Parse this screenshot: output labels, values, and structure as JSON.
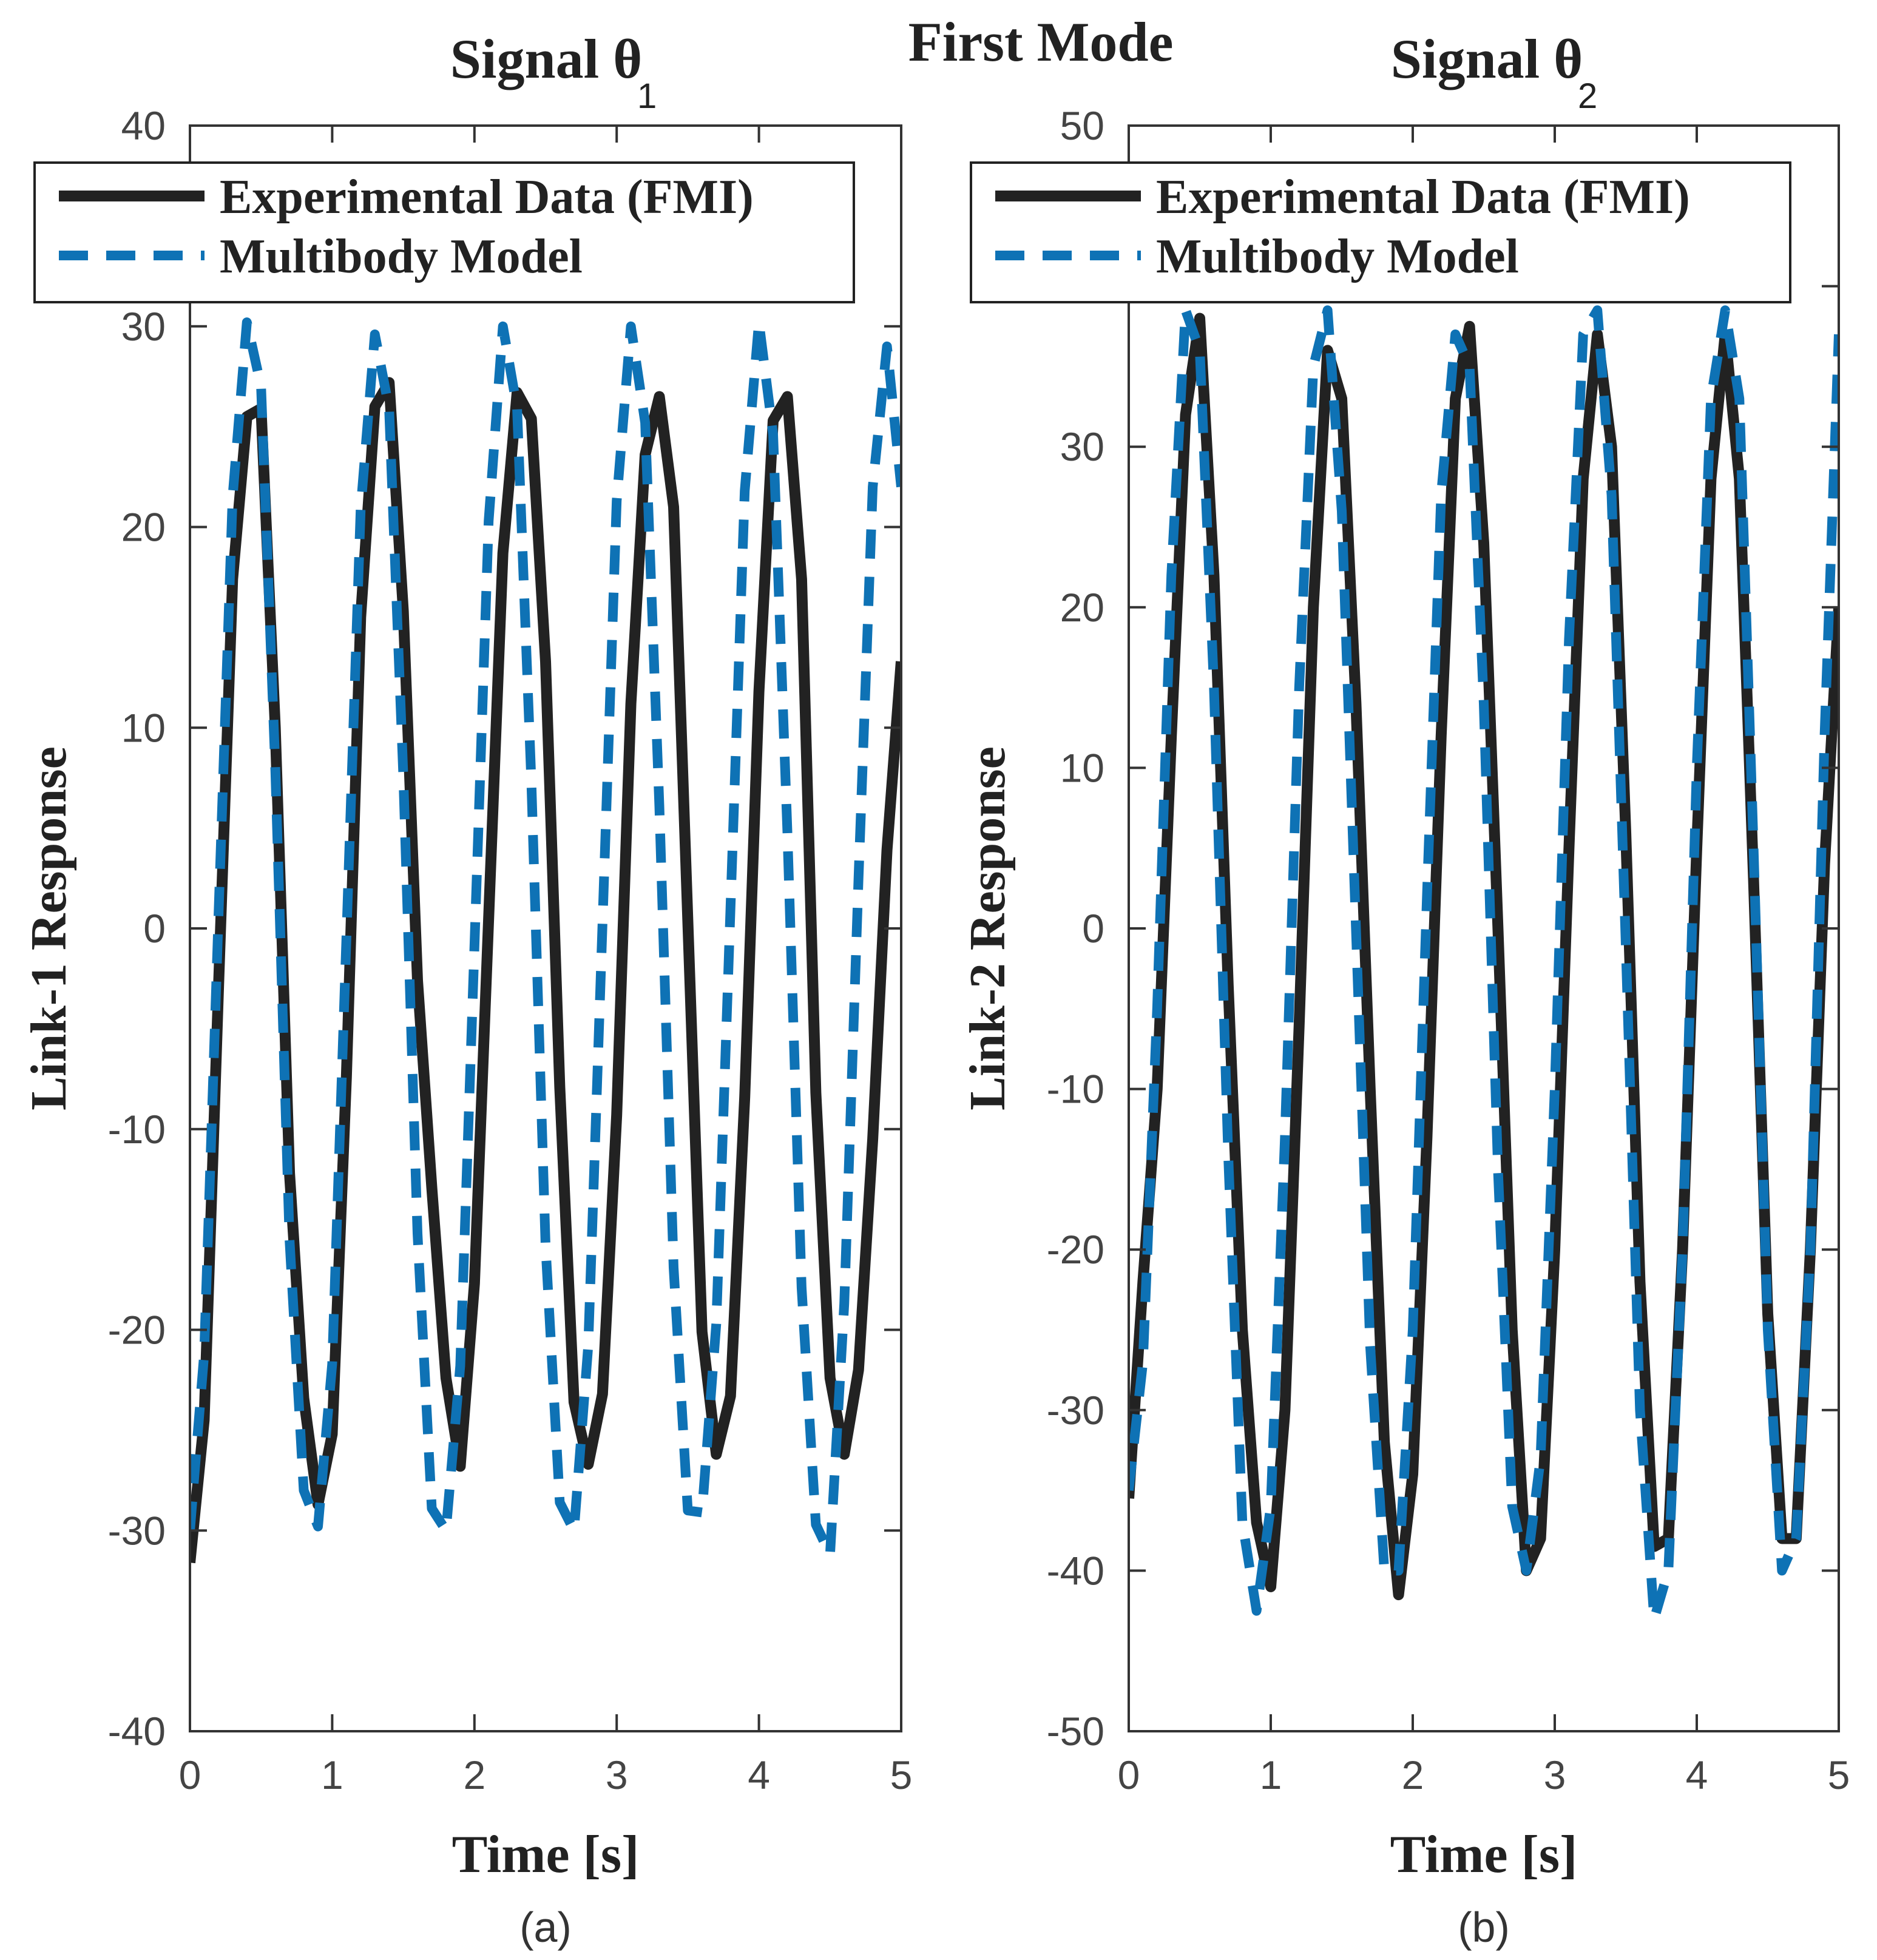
{
  "figure_title": "First Mode",
  "chart_data": [
    {
      "type": "line",
      "panel_label": "(a)",
      "title": "Signal θ",
      "title_subscript": "1",
      "xlabel": "Time [s]",
      "ylabel": "Link-1 Response",
      "xlim": [
        0,
        5
      ],
      "ylim": [
        -40,
        40
      ],
      "xticks": [
        0,
        1,
        2,
        3,
        4,
        5
      ],
      "yticks": [
        -40,
        -30,
        -20,
        -10,
        0,
        10,
        20,
        30,
        40
      ],
      "xtick_labels": [
        "0",
        "1",
        "2",
        "3",
        "4",
        "5"
      ],
      "ytick_labels": [
        "-40",
        "-30",
        "-20",
        "-10",
        "0",
        "10",
        "20",
        "30",
        "40"
      ],
      "grid": false,
      "legend_position": "top",
      "series": [
        {
          "name": "Experimental Data (FMI)",
          "style": "solid",
          "color": "#222222",
          "x": [
            0,
            0.1,
            0.2,
            0.3,
            0.4,
            0.5,
            0.6,
            0.7,
            0.8,
            0.9,
            1.0,
            1.1,
            1.2,
            1.3,
            1.4,
            1.5,
            1.6,
            1.7,
            1.8,
            1.9,
            2.0,
            2.1,
            2.2,
            2.3,
            2.4,
            2.5,
            2.6,
            2.7,
            2.8,
            2.9,
            3.0,
            3.1,
            3.2,
            3.3,
            3.4,
            3.5,
            3.6,
            3.7,
            3.8,
            3.9,
            4.0,
            4.1,
            4.2,
            4.3,
            4.4,
            4.5,
            4.6,
            4.7,
            4.8,
            4.9,
            5.0
          ],
          "y": [
            -31.6,
            -24.5,
            -3.1,
            17.4,
            25.5,
            25.9,
            10.0,
            -12.2,
            -23.4,
            -28.7,
            -25.2,
            -7.4,
            15.5,
            26.0,
            27.2,
            15.8,
            -2.6,
            -12.9,
            -22.4,
            -26.8,
            -17.7,
            0.5,
            18.7,
            26.7,
            25.4,
            13.3,
            -7.9,
            -23.6,
            -26.7,
            -23.2,
            -9.3,
            11.2,
            23.6,
            26.5,
            21.0,
            0.4,
            -20.1,
            -26.2,
            -23.3,
            -8.4,
            11.8,
            25.3,
            26.5,
            17.4,
            -8.2,
            -22.4,
            -26.2,
            -22.0,
            -10.5,
            3.9,
            13.3
          ]
        },
        {
          "name": "Multibody Model",
          "style": "dashed",
          "color": "#0e72b5",
          "x": [
            0,
            0.1,
            0.2,
            0.3,
            0.4,
            0.5,
            0.6,
            0.7,
            0.8,
            0.9,
            1.0,
            1.1,
            1.2,
            1.3,
            1.4,
            1.5,
            1.6,
            1.7,
            1.8,
            1.9,
            2.0,
            2.1,
            2.2,
            2.3,
            2.4,
            2.5,
            2.6,
            2.7,
            2.8,
            2.9,
            3.0,
            3.1,
            3.2,
            3.3,
            3.4,
            3.5,
            3.6,
            3.7,
            3.8,
            3.9,
            4.0,
            4.1,
            4.2,
            4.3,
            4.4,
            4.5,
            4.6,
            4.7,
            4.8,
            4.9,
            5.0
          ],
          "y": [
            -30.0,
            -21.2,
            0.5,
            21.5,
            30.2,
            27.0,
            8.0,
            -15.5,
            -28.0,
            -29.8,
            -21.7,
            -0.5,
            20.9,
            29.6,
            25.9,
            7.6,
            -15.2,
            -28.9,
            -30.0,
            -21.8,
            -0.9,
            20.3,
            30.0,
            25.9,
            7.3,
            -15.8,
            -28.6,
            -30.0,
            -20.8,
            0.2,
            21.3,
            30.0,
            25.2,
            6.1,
            -16.9,
            -29.0,
            -29.1,
            -19.7,
            1.0,
            21.8,
            30.2,
            24.6,
            4.8,
            -17.9,
            -29.7,
            -31.2,
            -18.7,
            2.5,
            22.0,
            29.0,
            22.0
          ]
        }
      ]
    },
    {
      "type": "line",
      "panel_label": "(b)",
      "title": "Signal θ",
      "title_subscript": "2",
      "xlabel": "Time [s]",
      "ylabel": "Link-2 Response",
      "xlim": [
        0,
        5
      ],
      "ylim": [
        -50,
        50
      ],
      "xticks": [
        0,
        1,
        2,
        3,
        4,
        5
      ],
      "yticks": [
        -50,
        -40,
        -30,
        -20,
        -10,
        0,
        10,
        20,
        30,
        40,
        50
      ],
      "xtick_labels": [
        "0",
        "1",
        "2",
        "3",
        "4",
        "5"
      ],
      "ytick_labels": [
        "-50",
        "-40",
        "-30",
        "-20",
        "-10",
        "0",
        "10",
        "20",
        "30",
        "40",
        "50"
      ],
      "grid": false,
      "legend_position": "top",
      "series": [
        {
          "name": "Experimental Data (FMI)",
          "style": "solid",
          "color": "#222222",
          "x": [
            0,
            0.1,
            0.2,
            0.3,
            0.4,
            0.5,
            0.6,
            0.7,
            0.8,
            0.9,
            1.0,
            1.1,
            1.2,
            1.3,
            1.4,
            1.5,
            1.6,
            1.7,
            1.8,
            1.9,
            2.0,
            2.1,
            2.2,
            2.3,
            2.4,
            2.5,
            2.6,
            2.7,
            2.8,
            2.9,
            3.0,
            3.1,
            3.2,
            3.3,
            3.4,
            3.5,
            3.6,
            3.7,
            3.8,
            3.9,
            4.0,
            4.1,
            4.2,
            4.3,
            4.4,
            4.5,
            4.6,
            4.7,
            4.8,
            4.9,
            5.0
          ],
          "y": [
            -35.5,
            -22.0,
            -10.0,
            12.0,
            32.0,
            38.0,
            22.0,
            -3.5,
            -25.0,
            -37.0,
            -41.0,
            -30.0,
            -6.0,
            20.0,
            36.0,
            33.0,
            14.0,
            -10.0,
            -32.0,
            -41.5,
            -34.0,
            -13.0,
            12.0,
            33.0,
            37.5,
            24.0,
            0.0,
            -25.0,
            -40.0,
            -38.0,
            -20.0,
            5.0,
            28.0,
            37.0,
            30.0,
            6.0,
            -22.0,
            -38.5,
            -38.0,
            -20.0,
            5.0,
            28.0,
            37.0,
            28.0,
            3.0,
            -24.0,
            -38.0,
            -38.0,
            -20.0,
            4.0,
            20.0
          ]
        },
        {
          "name": "Multibody Model",
          "style": "dashed",
          "color": "#0e72b5",
          "x": [
            0,
            0.1,
            0.2,
            0.3,
            0.4,
            0.5,
            0.6,
            0.7,
            0.8,
            0.9,
            1.0,
            1.1,
            1.2,
            1.3,
            1.4,
            1.5,
            1.6,
            1.7,
            1.8,
            1.9,
            2.0,
            2.1,
            2.2,
            2.3,
            2.4,
            2.5,
            2.6,
            2.7,
            2.8,
            2.9,
            3.0,
            3.1,
            3.2,
            3.3,
            3.4,
            3.5,
            3.6,
            3.7,
            3.8,
            3.9,
            4.0,
            4.1,
            4.2,
            4.3,
            4.4,
            4.5,
            4.6,
            4.7,
            4.8,
            4.9,
            5.0
          ],
          "y": [
            -35.0,
            -27.0,
            -5.0,
            22.0,
            38.5,
            36.0,
            15.0,
            -14.0,
            -37.0,
            -42.5,
            -36.0,
            -13.0,
            15.0,
            35.0,
            38.5,
            26.0,
            0.0,
            -26.0,
            -40.0,
            -40.0,
            -25.0,
            2.0,
            27.0,
            37.0,
            35.0,
            14.0,
            -15.0,
            -36.0,
            -40.0,
            -33.0,
            -10.0,
            18.0,
            37.0,
            38.5,
            27.0,
            -1.0,
            -30.0,
            -43.0,
            -40.0,
            -20.0,
            10.0,
            33.0,
            38.5,
            33.0,
            5.0,
            -25.0,
            -40.0,
            -38.0,
            -20.0,
            12.0,
            37.0
          ]
        }
      ]
    }
  ]
}
